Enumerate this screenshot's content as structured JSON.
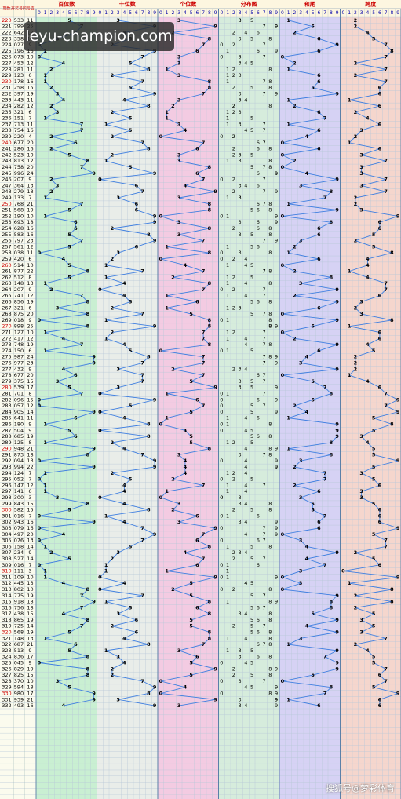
{
  "header": {
    "columns": [
      "期数",
      "开奖号码",
      "和值",
      "百位数",
      "十位数",
      "个位数",
      "分布图",
      "和尾",
      "跨度"
    ],
    "digits": [
      "0",
      "1",
      "2",
      "3",
      "4",
      "5",
      "6",
      "7",
      "8",
      "9"
    ]
  },
  "rows": [
    [
      "220",
      "533",
      11,
      [
        5,
        3,
        3
      ],
      1,
      2
    ],
    [
      "221",
      "799",
      25,
      [
        7,
        9,
        9
      ],
      5,
      2
    ],
    [
      "222",
      "642",
      12,
      [
        6,
        4,
        2
      ],
      2,
      4
    ],
    [
      "223",
      "358",
      16,
      [
        3,
        5,
        8
      ],
      6,
      5
    ],
    [
      "224",
      "027",
      9,
      [
        0,
        2,
        7
      ],
      9,
      7
    ],
    [
      "225",
      "196",
      16,
      [
        1,
        9,
        6
      ],
      6,
      8
    ],
    [
      "226",
      "073",
      10,
      [
        0,
        7,
        3
      ],
      0,
      7
    ],
    [
      "227",
      "453",
      12,
      [
        4,
        5,
        3
      ],
      2,
      2
    ],
    [
      "228",
      "281",
      11,
      [
        2,
        8,
        1
      ],
      1,
      7
    ],
    [
      "229",
      "123",
      6,
      [
        1,
        2,
        3
      ],
      6,
      2
    ],
    [
      "230",
      "178",
      16,
      [
        1,
        7,
        8
      ],
      6,
      7
    ],
    [
      "231",
      "258",
      15,
      [
        2,
        5,
        8
      ],
      5,
      6
    ],
    [
      "232",
      "397",
      19,
      [
        3,
        9,
        7
      ],
      9,
      6
    ],
    [
      "233",
      "443",
      11,
      [
        4,
        4,
        3
      ],
      1,
      1
    ],
    [
      "234",
      "282",
      12,
      [
        2,
        8,
        2
      ],
      2,
      6
    ],
    [
      "235",
      "321",
      6,
      [
        3,
        2,
        1
      ],
      6,
      2
    ],
    [
      "236",
      "151",
      7,
      [
        1,
        5,
        1
      ],
      7,
      4
    ],
    [
      "237",
      "713",
      11,
      [
        7,
        1,
        3
      ],
      1,
      6
    ],
    [
      "238",
      "754",
      16,
      [
        7,
        5,
        4
      ],
      6,
      3
    ],
    [
      "239",
      "220",
      4,
      [
        2,
        2,
        0
      ],
      4,
      2
    ],
    [
      "240",
      "677",
      20,
      [
        6,
        7,
        7
      ],
      0,
      1
    ],
    [
      "241",
      "286",
      16,
      [
        2,
        8,
        6
      ],
      6,
      6
    ],
    [
      "242",
      "523",
      10,
      [
        5,
        2,
        3
      ],
      0,
      3
    ],
    [
      "243",
      "813",
      12,
      [
        8,
        1,
        3
      ],
      2,
      7
    ],
    [
      "244",
      "758",
      20,
      [
        7,
        5,
        8
      ],
      0,
      3
    ],
    [
      "245",
      "996",
      24,
      [
        9,
        9,
        6
      ],
      4,
      3
    ],
    [
      "246",
      "207",
      9,
      [
        2,
        0,
        7
      ],
      9,
      7
    ],
    [
      "247",
      "364",
      13,
      [
        3,
        6,
        4
      ],
      3,
      3
    ],
    [
      "248",
      "279",
      18,
      [
        2,
        7,
        9
      ],
      8,
      7
    ],
    [
      "249",
      "133",
      7,
      [
        1,
        3,
        3
      ],
      7,
      2
    ],
    [
      "250",
      "768",
      21,
      [
        7,
        6,
        8
      ],
      1,
      2
    ],
    [
      "251",
      "568",
      19,
      [
        5,
        6,
        8
      ],
      9,
      3
    ],
    [
      "252",
      "190",
      10,
      [
        1,
        9,
        0
      ],
      0,
      9
    ],
    [
      "253",
      "693",
      18,
      [
        6,
        9,
        3
      ],
      8,
      6
    ],
    [
      "254",
      "628",
      16,
      [
        6,
        2,
        8
      ],
      6,
      6
    ],
    [
      "255",
      "583",
      16,
      [
        5,
        8,
        3
      ],
      6,
      5
    ],
    [
      "256",
      "797",
      23,
      [
        7,
        9,
        7
      ],
      3,
      2
    ],
    [
      "257",
      "561",
      12,
      [
        5,
        6,
        1
      ],
      2,
      5
    ],
    [
      "258",
      "038",
      11,
      [
        0,
        3,
        8
      ],
      1,
      8
    ],
    [
      "259",
      "420",
      6,
      [
        4,
        2,
        0
      ],
      6,
      4
    ],
    [
      "260",
      "514",
      10,
      [
        5,
        1,
        4
      ],
      0,
      4
    ],
    [
      "261",
      "877",
      22,
      [
        8,
        7,
        7
      ],
      2,
      1
    ],
    [
      "262",
      "512",
      8,
      [
        5,
        1,
        2
      ],
      8,
      4
    ],
    [
      "263",
      "148",
      13,
      [
        1,
        4,
        8
      ],
      3,
      7
    ],
    [
      "264",
      "207",
      9,
      [
        2,
        0,
        7
      ],
      9,
      7
    ],
    [
      "265",
      "741",
      12,
      [
        7,
        4,
        1
      ],
      2,
      6
    ],
    [
      "266",
      "856",
      19,
      [
        8,
        5,
        6
      ],
      9,
      3
    ],
    [
      "267",
      "321",
      6,
      [
        3,
        2,
        1
      ],
      6,
      2
    ],
    [
      "268",
      "875",
      20,
      [
        8,
        7,
        5
      ],
      0,
      3
    ],
    [
      "269",
      "018",
      9,
      [
        0,
        1,
        8
      ],
      9,
      8
    ],
    [
      "270",
      "898",
      25,
      [
        8,
        9,
        8
      ],
      5,
      1
    ],
    [
      "271",
      "127",
      10,
      [
        1,
        2,
        7
      ],
      0,
      6
    ],
    [
      "272",
      "417",
      12,
      [
        4,
        1,
        7
      ],
      2,
      6
    ],
    [
      "273",
      "748",
      19,
      [
        7,
        4,
        8
      ],
      9,
      4
    ],
    [
      "274",
      "150",
      6,
      [
        1,
        5,
        0
      ],
      6,
      5
    ],
    [
      "275",
      "987",
      24,
      [
        9,
        8,
        7
      ],
      4,
      2
    ],
    [
      "276",
      "977",
      23,
      [
        9,
        7,
        7
      ],
      3,
      2
    ],
    [
      "277",
      "432",
      9,
      [
        4,
        3,
        2
      ],
      9,
      2
    ],
    [
      "278",
      "677",
      20,
      [
        6,
        7,
        7
      ],
      0,
      1
    ],
    [
      "279",
      "375",
      15,
      [
        3,
        7,
        5
      ],
      5,
      4
    ],
    [
      "280",
      "539",
      17,
      [
        5,
        3,
        9
      ],
      7,
      6
    ],
    [
      "281",
      "701",
      8,
      [
        7,
        0,
        1
      ],
      8,
      7
    ],
    [
      "282",
      "096",
      15,
      [
        0,
        9,
        6
      ],
      5,
      9
    ],
    [
      "283",
      "057",
      12,
      [
        0,
        5,
        7
      ],
      2,
      7
    ],
    [
      "284",
      "905",
      14,
      [
        9,
        0,
        5
      ],
      4,
      9
    ],
    [
      "285",
      "641",
      11,
      [
        6,
        4,
        1
      ],
      1,
      5
    ],
    [
      "286",
      "180",
      9,
      [
        1,
        8,
        0
      ],
      9,
      8
    ],
    [
      "287",
      "504",
      9,
      [
        5,
        0,
        4
      ],
      9,
      5
    ],
    [
      "288",
      "685",
      19,
      [
        6,
        8,
        5
      ],
      9,
      3
    ],
    [
      "289",
      "125",
      8,
      [
        1,
        2,
        5
      ],
      8,
      4
    ],
    [
      "290",
      "948",
      21,
      [
        9,
        4,
        8
      ],
      1,
      5
    ],
    [
      "291",
      "873",
      18,
      [
        8,
        7,
        3
      ],
      8,
      5
    ],
    [
      "292",
      "094",
      13,
      [
        0,
        9,
        4
      ],
      3,
      9
    ],
    [
      "293",
      "994",
      22,
      [
        9,
        9,
        4
      ],
      2,
      5
    ],
    [
      "294",
      "124",
      7,
      [
        1,
        2,
        4
      ],
      7,
      3
    ],
    [
      "295",
      "052",
      7,
      [
        0,
        5,
        2
      ],
      7,
      5
    ],
    [
      "296",
      "147",
      12,
      [
        1,
        4,
        7
      ],
      2,
      6
    ],
    [
      "297",
      "141",
      6,
      [
        1,
        4,
        1
      ],
      6,
      3
    ],
    [
      "298",
      "300",
      3,
      [
        3,
        0,
        0
      ],
      3,
      3
    ],
    [
      "299",
      "843",
      15,
      [
        8,
        4,
        3
      ],
      5,
      5
    ],
    [
      "300",
      "582",
      15,
      [
        5,
        8,
        2
      ],
      5,
      6
    ],
    [
      "301",
      "016",
      7,
      [
        0,
        1,
        6
      ],
      7,
      6
    ],
    [
      "302",
      "943",
      16,
      [
        9,
        4,
        3
      ],
      6,
      6
    ],
    [
      "303",
      "079",
      16,
      [
        0,
        7,
        9
      ],
      6,
      9
    ],
    [
      "304",
      "497",
      20,
      [
        4,
        9,
        7
      ],
      0,
      5
    ],
    [
      "305",
      "076",
      13,
      [
        0,
        7,
        6
      ],
      3,
      7
    ],
    [
      "306",
      "158",
      14,
      [
        1,
        5,
        8
      ],
      4,
      7
    ],
    [
      "307",
      "234",
      9,
      [
        2,
        3,
        4
      ],
      9,
      2
    ],
    [
      "308",
      "527",
      14,
      [
        5,
        2,
        7
      ],
      4,
      5
    ],
    [
      "309",
      "016",
      7,
      [
        0,
        1,
        6
      ],
      7,
      6
    ],
    [
      "310",
      "111",
      3,
      [
        1,
        1,
        1
      ],
      3,
      0
    ],
    [
      "311",
      "109",
      10,
      [
        1,
        0,
        9
      ],
      0,
      9
    ],
    [
      "312",
      "445",
      13,
      [
        4,
        4,
        5
      ],
      3,
      1
    ],
    [
      "313",
      "802",
      10,
      [
        8,
        0,
        2
      ],
      0,
      8
    ],
    [
      "314",
      "775",
      19,
      [
        7,
        7,
        5
      ],
      9,
      2
    ],
    [
      "315",
      "918",
      18,
      [
        9,
        1,
        8
      ],
      8,
      8
    ],
    [
      "316",
      "756",
      18,
      [
        7,
        5,
        6
      ],
      8,
      2
    ],
    [
      "317",
      "438",
      15,
      [
        4,
        3,
        8
      ],
      5,
      5
    ],
    [
      "318",
      "865",
      19,
      [
        8,
        6,
        5
      ],
      9,
      3
    ],
    [
      "319",
      "725",
      14,
      [
        7,
        2,
        5
      ],
      4,
      5
    ],
    [
      "320",
      "568",
      19,
      [
        5,
        6,
        8
      ],
      9,
      3
    ],
    [
      "321",
      "148",
      13,
      [
        1,
        4,
        8
      ],
      3,
      7
    ],
    [
      "322",
      "687",
      21,
      [
        6,
        8,
        7
      ],
      1,
      2
    ],
    [
      "323",
      "513",
      9,
      [
        5,
        1,
        3
      ],
      9,
      4
    ],
    [
      "324",
      "836",
      17,
      [
        8,
        3,
        6
      ],
      7,
      5
    ],
    [
      "325",
      "045",
      9,
      [
        0,
        4,
        5
      ],
      9,
      5
    ],
    [
      "326",
      "829",
      19,
      [
        8,
        2,
        9
      ],
      9,
      7
    ],
    [
      "327",
      "825",
      15,
      [
        8,
        2,
        5
      ],
      5,
      6
    ],
    [
      "328",
      "370",
      10,
      [
        3,
        7,
        0
      ],
      0,
      7
    ],
    [
      "329",
      "594",
      18,
      [
        5,
        9,
        4
      ],
      8,
      5
    ],
    [
      "330",
      "980",
      17,
      [
        9,
        8,
        0
      ],
      7,
      9
    ],
    [
      "331",
      "939",
      21,
      [
        9,
        3,
        9
      ],
      1,
      6
    ],
    [
      "332",
      "493",
      16,
      [
        4,
        9,
        3
      ],
      6,
      6
    ]
  ],
  "overlay": "leyu-champion.com",
  "watermark": "搜狐号@梦彩体育"
}
